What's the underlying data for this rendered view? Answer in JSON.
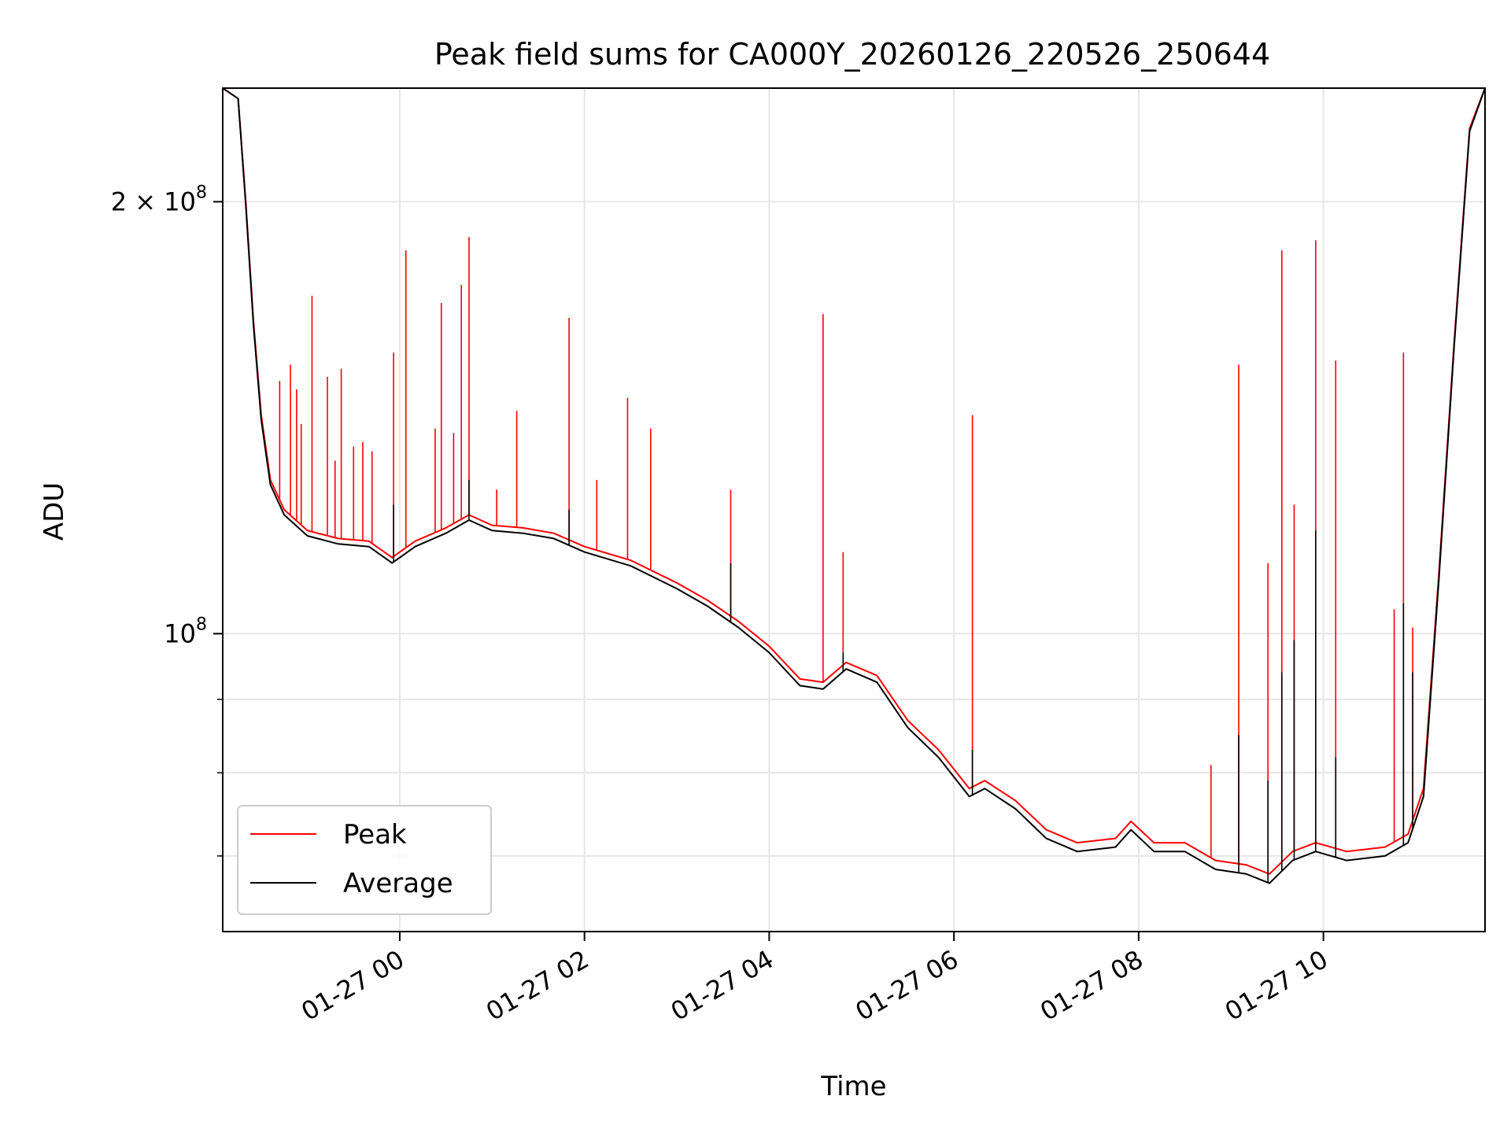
{
  "chart_data": {
    "type": "line",
    "title": "Peak field sums for CA000Y_20260126_220526_250644",
    "xlabel": "Time",
    "ylabel": "ADU",
    "yscale": "log",
    "grid": true,
    "legend_position": "lower-left",
    "xlim": [
      "2026-01-26 22:05",
      "2026-01-27 11:45"
    ],
    "ylim": [
      62000000,
      240000000
    ],
    "x_ticks": [
      {
        "t": "2026-01-27 00:00",
        "label": "01-27 00"
      },
      {
        "t": "2026-01-27 02:00",
        "label": "01-27 02"
      },
      {
        "t": "2026-01-27 04:00",
        "label": "01-27 04"
      },
      {
        "t": "2026-01-27 06:00",
        "label": "01-27 06"
      },
      {
        "t": "2026-01-27 08:00",
        "label": "01-27 08"
      },
      {
        "t": "2026-01-27 10:00",
        "label": "01-27 10"
      }
    ],
    "y_major_ticks": [
      {
        "value": 100000000,
        "base": "10",
        "exp": "8",
        "coef": ""
      },
      {
        "value": 200000000,
        "base": "10",
        "exp": "8",
        "coef": "2"
      }
    ],
    "y_minor_ticks": [
      70000000,
      80000000,
      90000000
    ],
    "series": [
      {
        "name": "Peak",
        "color": "#ff0000",
        "baseline": [
          [
            "2026-01-26 22:05",
            240000000
          ],
          [
            "2026-01-26 22:15",
            236000000
          ],
          [
            "2026-01-26 22:20",
            200000000
          ],
          [
            "2026-01-26 22:25",
            165000000
          ],
          [
            "2026-01-26 22:30",
            142000000
          ],
          [
            "2026-01-26 22:36",
            128000000
          ],
          [
            "2026-01-26 22:45",
            122000000
          ],
          [
            "2026-01-26 23:00",
            118000000
          ],
          [
            "2026-01-26 23:20",
            116500000
          ],
          [
            "2026-01-26 23:40",
            116000000
          ],
          [
            "2026-01-26 23:55",
            113000000
          ],
          [
            "2026-01-27 00:10",
            116000000
          ],
          [
            "2026-01-27 00:30",
            118500000
          ],
          [
            "2026-01-27 00:45",
            121000000
          ],
          [
            "2026-01-27 01:00",
            119000000
          ],
          [
            "2026-01-27 01:20",
            118500000
          ],
          [
            "2026-01-27 01:40",
            117500000
          ],
          [
            "2026-01-27 02:00",
            115000000
          ],
          [
            "2026-01-27 02:30",
            112500000
          ],
          [
            "2026-01-27 03:00",
            108500000
          ],
          [
            "2026-01-27 03:20",
            105500000
          ],
          [
            "2026-01-27 03:40",
            102000000
          ],
          [
            "2026-01-27 04:00",
            98000000
          ],
          [
            "2026-01-27 04:20",
            93000000
          ],
          [
            "2026-01-27 04:35",
            92500000
          ],
          [
            "2026-01-27 04:50",
            95500000
          ],
          [
            "2026-01-27 05:10",
            93500000
          ],
          [
            "2026-01-27 05:30",
            87000000
          ],
          [
            "2026-01-27 05:50",
            83000000
          ],
          [
            "2026-01-27 06:10",
            78000000
          ],
          [
            "2026-01-27 06:20",
            79000000
          ],
          [
            "2026-01-27 06:40",
            76500000
          ],
          [
            "2026-01-27 07:00",
            73000000
          ],
          [
            "2026-01-27 07:20",
            71500000
          ],
          [
            "2026-01-27 07:45",
            72000000
          ],
          [
            "2026-01-27 07:55",
            74000000
          ],
          [
            "2026-01-27 08:10",
            71500000
          ],
          [
            "2026-01-27 08:30",
            71500000
          ],
          [
            "2026-01-27 08:50",
            69500000
          ],
          [
            "2026-01-27 09:10",
            69000000
          ],
          [
            "2026-01-27 09:25",
            68000000
          ],
          [
            "2026-01-27 09:40",
            70500000
          ],
          [
            "2026-01-27 09:55",
            71500000
          ],
          [
            "2026-01-27 10:15",
            70500000
          ],
          [
            "2026-01-27 10:40",
            71000000
          ],
          [
            "2026-01-27 10:55",
            72500000
          ],
          [
            "2026-01-27 11:05",
            78000000
          ],
          [
            "2026-01-27 11:15",
            110000000
          ],
          [
            "2026-01-27 11:25",
            160000000
          ],
          [
            "2026-01-27 11:35",
            225000000
          ],
          [
            "2026-01-27 11:45",
            240000000
          ]
        ],
        "spikes": [
          [
            "2026-01-26 22:42",
            150000000
          ],
          [
            "2026-01-26 22:49",
            154000000
          ],
          [
            "2026-01-26 22:53",
            148000000
          ],
          [
            "2026-01-26 22:56",
            140000000
          ],
          [
            "2026-01-26 23:03",
            172000000
          ],
          [
            "2026-01-26 23:13",
            151000000
          ],
          [
            "2026-01-26 23:18",
            132000000
          ],
          [
            "2026-01-26 23:22",
            153000000
          ],
          [
            "2026-01-26 23:30",
            135000000
          ],
          [
            "2026-01-26 23:36",
            136000000
          ],
          [
            "2026-01-26 23:42",
            134000000
          ],
          [
            "2026-01-26 23:56",
            157000000
          ],
          [
            "2026-01-27 00:04",
            185000000
          ],
          [
            "2026-01-27 00:23",
            139000000
          ],
          [
            "2026-01-27 00:27",
            170000000
          ],
          [
            "2026-01-27 00:35",
            138000000
          ],
          [
            "2026-01-27 00:40",
            175000000
          ],
          [
            "2026-01-27 00:45",
            189000000
          ],
          [
            "2026-01-27 01:03",
            126000000
          ],
          [
            "2026-01-27 01:16",
            143000000
          ],
          [
            "2026-01-27 01:50",
            166000000
          ],
          [
            "2026-01-27 02:08",
            128000000
          ],
          [
            "2026-01-27 02:28",
            146000000
          ],
          [
            "2026-01-27 02:43",
            139000000
          ],
          [
            "2026-01-27 03:35",
            126000000
          ],
          [
            "2026-01-27 04:35",
            167000000
          ],
          [
            "2026-01-27 04:48",
            114000000
          ],
          [
            "2026-01-27 06:12",
            142000000
          ],
          [
            "2026-01-27 08:47",
            81000000
          ],
          [
            "2026-01-27 09:05",
            154000000
          ],
          [
            "2026-01-27 09:24",
            112000000
          ],
          [
            "2026-01-27 09:33",
            185000000
          ],
          [
            "2026-01-27 09:41",
            123000000
          ],
          [
            "2026-01-27 09:55",
            188000000
          ],
          [
            "2026-01-27 10:08",
            155000000
          ],
          [
            "2026-01-27 10:46",
            104000000
          ],
          [
            "2026-01-27 10:52",
            157000000
          ],
          [
            "2026-01-27 10:58",
            101000000
          ]
        ]
      },
      {
        "name": "Average",
        "color": "#000000",
        "baseline": [
          [
            "2026-01-26 22:05",
            240000000
          ],
          [
            "2026-01-26 22:15",
            236000000
          ],
          [
            "2026-01-26 22:20",
            199000000
          ],
          [
            "2026-01-26 22:25",
            164000000
          ],
          [
            "2026-01-26 22:30",
            141000000
          ],
          [
            "2026-01-26 22:36",
            127000000
          ],
          [
            "2026-01-26 22:45",
            121000000
          ],
          [
            "2026-01-26 23:00",
            117000000
          ],
          [
            "2026-01-26 23:20",
            115500000
          ],
          [
            "2026-01-26 23:40",
            115000000
          ],
          [
            "2026-01-26 23:55",
            112000000
          ],
          [
            "2026-01-27 00:10",
            115000000
          ],
          [
            "2026-01-27 00:30",
            117500000
          ],
          [
            "2026-01-27 00:45",
            120000000
          ],
          [
            "2026-01-27 01:00",
            118000000
          ],
          [
            "2026-01-27 01:20",
            117500000
          ],
          [
            "2026-01-27 01:40",
            116500000
          ],
          [
            "2026-01-27 02:00",
            114000000
          ],
          [
            "2026-01-27 02:30",
            111500000
          ],
          [
            "2026-01-27 03:00",
            107500000
          ],
          [
            "2026-01-27 03:20",
            104500000
          ],
          [
            "2026-01-27 03:40",
            101000000
          ],
          [
            "2026-01-27 04:00",
            97000000
          ],
          [
            "2026-01-27 04:20",
            92000000
          ],
          [
            "2026-01-27 04:35",
            91500000
          ],
          [
            "2026-01-27 04:50",
            94500000
          ],
          [
            "2026-01-27 05:10",
            92500000
          ],
          [
            "2026-01-27 05:30",
            86000000
          ],
          [
            "2026-01-27 05:50",
            82000000
          ],
          [
            "2026-01-27 06:10",
            77000000
          ],
          [
            "2026-01-27 06:20",
            78000000
          ],
          [
            "2026-01-27 06:40",
            75500000
          ],
          [
            "2026-01-27 07:00",
            72000000
          ],
          [
            "2026-01-27 07:20",
            70500000
          ],
          [
            "2026-01-27 07:45",
            71000000
          ],
          [
            "2026-01-27 07:55",
            73000000
          ],
          [
            "2026-01-27 08:10",
            70500000
          ],
          [
            "2026-01-27 08:30",
            70500000
          ],
          [
            "2026-01-27 08:50",
            68500000
          ],
          [
            "2026-01-27 09:10",
            68000000
          ],
          [
            "2026-01-27 09:25",
            67000000
          ],
          [
            "2026-01-27 09:40",
            69500000
          ],
          [
            "2026-01-27 09:55",
            70500000
          ],
          [
            "2026-01-27 10:15",
            69500000
          ],
          [
            "2026-01-27 10:40",
            70000000
          ],
          [
            "2026-01-27 10:55",
            71500000
          ],
          [
            "2026-01-27 11:05",
            77000000
          ],
          [
            "2026-01-27 11:15",
            109000000
          ],
          [
            "2026-01-27 11:25",
            159000000
          ],
          [
            "2026-01-27 11:35",
            224000000
          ],
          [
            "2026-01-27 11:45",
            240000000
          ]
        ],
        "spikes": [
          [
            "2026-01-26 23:56",
            123000000
          ],
          [
            "2026-01-27 00:45",
            128000000
          ],
          [
            "2026-01-27 01:50",
            122000000
          ],
          [
            "2026-01-27 03:35",
            112000000
          ],
          [
            "2026-01-27 04:48",
            97000000
          ],
          [
            "2026-01-27 06:12",
            83000000
          ],
          [
            "2026-01-27 09:05",
            85000000
          ],
          [
            "2026-01-27 09:24",
            79000000
          ],
          [
            "2026-01-27 09:33",
            94000000
          ],
          [
            "2026-01-27 09:41",
            99000000
          ],
          [
            "2026-01-27 09:55",
            118000000
          ],
          [
            "2026-01-27 10:08",
            82000000
          ],
          [
            "2026-01-27 10:52",
            105000000
          ],
          [
            "2026-01-27 10:58",
            94000000
          ]
        ]
      }
    ]
  }
}
